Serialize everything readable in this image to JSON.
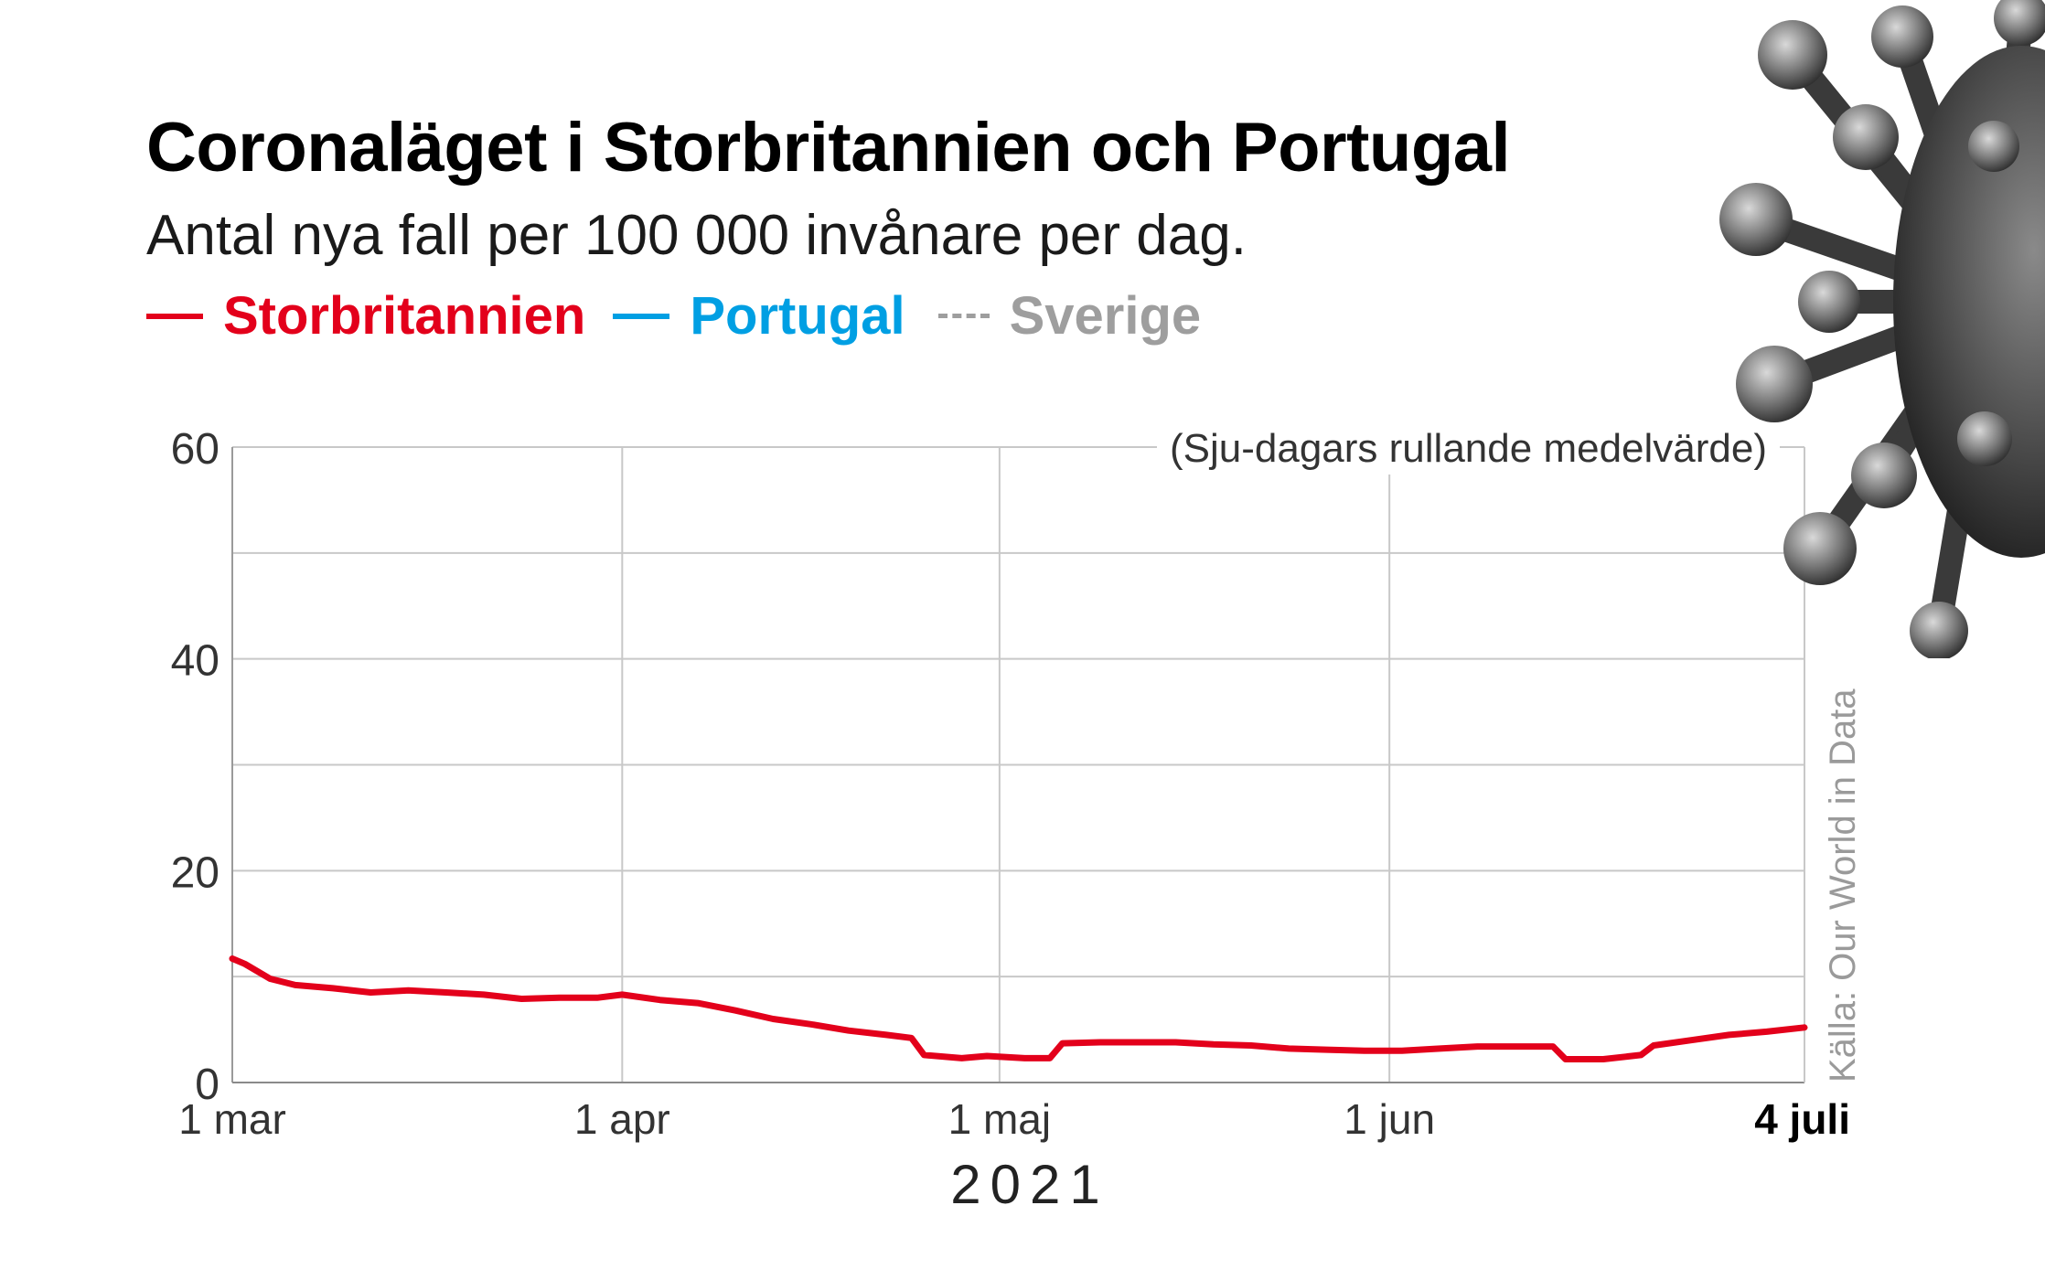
{
  "header": {
    "title": "Coronaläget i Storbritannien och Portugal",
    "subtitle": "Antal nya fall per 100 000 invånare per dag."
  },
  "legend": [
    {
      "label": "Storbritannien",
      "color": "#e3001b",
      "style": "solid"
    },
    {
      "label": "Portugal",
      "color": "#009fe3",
      "style": "solid"
    },
    {
      "label": "Sverige",
      "color": "#9e9e9e",
      "style": "dashed"
    }
  ],
  "annotation": "(Sju-dagars rullande medelvärde)",
  "source": "Källa: Our World in Data",
  "year_label": "2021",
  "decoration": {
    "image": "coronavirus-illustration",
    "color": "#555555"
  },
  "chart_data": {
    "type": "line",
    "xlim": [
      "2021-03-01",
      "2021-07-04"
    ],
    "ylim": [
      0,
      60
    ],
    "yticks": [
      0,
      20,
      40,
      60
    ],
    "grid": true,
    "legend_position": "top",
    "x_ticks": [
      {
        "date": "2021-03-01",
        "label": "1 mar",
        "bold": false
      },
      {
        "date": "2021-04-01",
        "label": "1 apr",
        "bold": false
      },
      {
        "date": "2021-05-01",
        "label": "1 maj",
        "bold": false
      },
      {
        "date": "2021-06-01",
        "label": "1 jun",
        "bold": false
      },
      {
        "date": "2021-07-04",
        "label": "4 juli",
        "bold": true
      }
    ],
    "series": [
      {
        "name": "Storbritannien",
        "color": "#e3001b",
        "dash": false,
        "points": [
          [
            "2021-03-01",
            11.7
          ],
          [
            "2021-03-02",
            11.2
          ],
          [
            "2021-03-04",
            9.8
          ],
          [
            "2021-03-06",
            9.2
          ],
          [
            "2021-03-09",
            8.9
          ],
          [
            "2021-03-12",
            8.5
          ],
          [
            "2021-03-15",
            8.7
          ],
          [
            "2021-03-18",
            8.5
          ],
          [
            "2021-03-21",
            8.3
          ],
          [
            "2021-03-24",
            7.9
          ],
          [
            "2021-03-27",
            8.0
          ],
          [
            "2021-03-30",
            8.0
          ],
          [
            "2021-04-01",
            8.3
          ],
          [
            "2021-04-04",
            7.8
          ],
          [
            "2021-04-07",
            7.5
          ],
          [
            "2021-04-10",
            6.8
          ],
          [
            "2021-04-13",
            6.0
          ],
          [
            "2021-04-16",
            5.5
          ],
          [
            "2021-04-19",
            4.9
          ],
          [
            "2021-04-22",
            4.5
          ],
          [
            "2021-04-24",
            4.2
          ],
          [
            "2021-04-25",
            2.6
          ],
          [
            "2021-04-28",
            2.3
          ],
          [
            "2021-04-30",
            2.5
          ],
          [
            "2021-05-03",
            2.3
          ],
          [
            "2021-05-05",
            2.3
          ],
          [
            "2021-05-06",
            3.7
          ],
          [
            "2021-05-09",
            3.8
          ],
          [
            "2021-05-12",
            3.8
          ],
          [
            "2021-05-15",
            3.8
          ],
          [
            "2021-05-18",
            3.6
          ],
          [
            "2021-05-21",
            3.5
          ],
          [
            "2021-05-24",
            3.2
          ],
          [
            "2021-05-27",
            3.1
          ],
          [
            "2021-05-30",
            3.0
          ],
          [
            "2021-06-02",
            3.0
          ],
          [
            "2021-06-05",
            3.2
          ],
          [
            "2021-06-08",
            3.4
          ],
          [
            "2021-06-11",
            3.4
          ],
          [
            "2021-06-14",
            3.4
          ],
          [
            "2021-06-15",
            2.2
          ],
          [
            "2021-06-18",
            2.2
          ],
          [
            "2021-06-21",
            2.6
          ],
          [
            "2021-06-22",
            3.5
          ],
          [
            "2021-06-25",
            4.0
          ],
          [
            "2021-06-28",
            4.5
          ],
          [
            "2021-07-01",
            4.8
          ],
          [
            "2021-07-04",
            5.2
          ]
        ]
      }
    ]
  }
}
